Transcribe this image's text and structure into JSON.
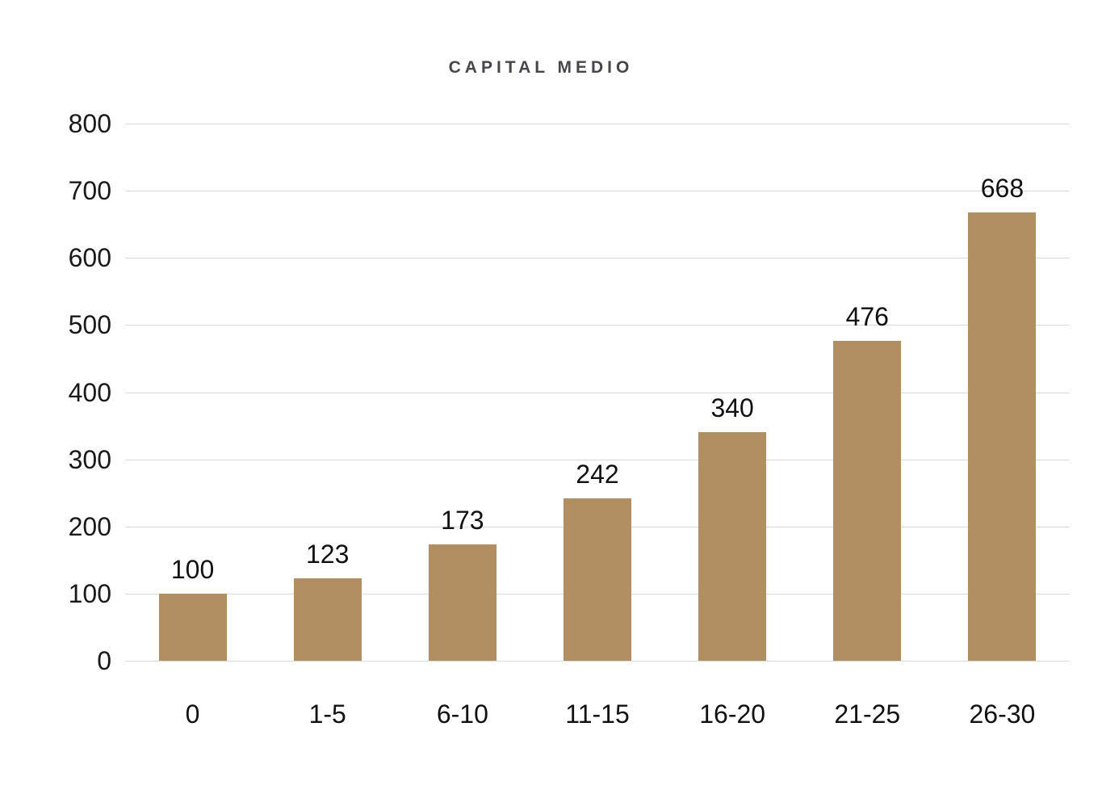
{
  "chart_data": {
    "type": "bar",
    "title": "CAPITAL MEDIO",
    "categories": [
      "0",
      "1-5",
      "6-10",
      "11-15",
      "16-20",
      "21-25",
      "26-30"
    ],
    "values": [
      100,
      123,
      173,
      242,
      340,
      476,
      668
    ],
    "data_labels": [
      "100",
      "123",
      "173",
      "242",
      "340",
      "476",
      "668"
    ],
    "y_ticks": [
      0,
      100,
      200,
      300,
      400,
      500,
      600,
      700,
      800
    ],
    "ylim": [
      0,
      800
    ],
    "xlabel": "",
    "ylabel": "",
    "grid": "horizontal",
    "legend": "none",
    "colors": {
      "bar": "#b28f63",
      "gridline": "#d9d9d9",
      "title": "#45474b",
      "tick_text": "#1a1a1a",
      "value_text": "#111111",
      "background": "#ffffff"
    }
  }
}
